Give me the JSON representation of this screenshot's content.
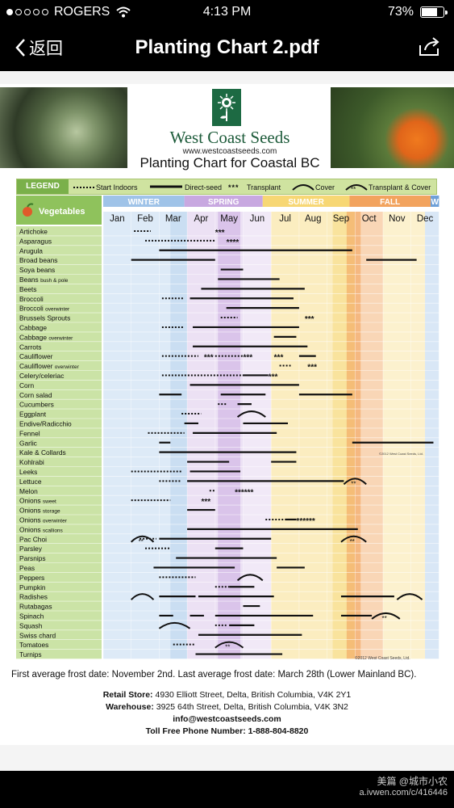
{
  "status_bar": {
    "carrier": "ROGERS",
    "time": "4:13 PM",
    "battery": "73%",
    "battery_level": 0.73
  },
  "nav": {
    "back_label": "返回",
    "title": "Planting Chart 2.pdf"
  },
  "document": {
    "brand": "West Coast Seeds",
    "website": "www.westcoastseeds.com",
    "chart_title": "Planting Chart for Coastal BC",
    "legend": {
      "label": "LEGEND",
      "start_indoors": "Start Indoors",
      "direct_seed": "Direct-seed",
      "transplant": "Transplant",
      "cover": "Cover",
      "transplant_cover": "Transplant & Cover"
    },
    "seasons": [
      "WINTER",
      "SPRING",
      "SUMMER",
      "FALL",
      "W"
    ],
    "months": [
      "Jan",
      "Feb",
      "Mar",
      "Apr",
      "May",
      "Jun",
      "Jul",
      "Aug",
      "Sep",
      "Oct",
      "Nov",
      "Dec"
    ],
    "vegetables_header": "Vegetables",
    "crops": [
      "Artichoke",
      "Asparagus",
      "Arugula",
      "Broad beans",
      "Soya beans",
      "Beans bush & pole",
      "Beets",
      "Broccoli",
      "Broccoli overwinter",
      "Brussels Sprouts",
      "Cabbage",
      "Cabbage overwinter",
      "Carrots",
      "Cauliflower",
      "Cauliflower overwinter",
      "Celery/celeriac",
      "Corn",
      "Corn salad",
      "Cucumbers",
      "Eggplant",
      "Endive/Radicchio",
      "Fennel",
      "Garlic",
      "Kale & Collards",
      "Kohlrabi",
      "Leeks",
      "Lettuce",
      "Melon",
      "Onions sweet",
      "Onions storage",
      "Onions overwinter",
      "Onions scallions",
      "Pac Choi",
      "Parsley",
      "Parsnips",
      "Peas",
      "Peppers",
      "Pumpkin",
      "Radishes",
      "Rutabagas",
      "Spinach",
      "Squash",
      "Swiss chard",
      "Tomatoes",
      "Turnips"
    ],
    "copyright": "©2012 West Coast Seeds, Ltd.",
    "frost_note": "First average frost date: November 2nd. Last average frost date: March 28th (Lower Mainland BC).",
    "retail_label": "Retail Store:",
    "retail_address": "4930 Elliott Street, Delta, British Columbia, V4K 2Y1",
    "warehouse_label": "Warehouse:",
    "warehouse_address": "3925 64th Street, Delta, British Columbia, V4K 3N2",
    "email": "info@westcoastseeds.com",
    "phone_label": "Toll Free Phone Number:",
    "phone": "1-888-804-8820"
  },
  "watermark": {
    "line1": "美篇 @城市小农",
    "line2": "a.ivwen.com/c/416446"
  },
  "colors": {
    "winter": "#9fc3e8",
    "spring": "#c8a8e0",
    "summer": "#f7d774",
    "fall": "#f2a35e",
    "veg_green": "#8fc25c",
    "logo_green": "#1d6a43"
  },
  "bars": [
    {
      "row": 0,
      "segs": [
        [
          "d",
          1.1,
          1.7
        ],
        [
          "t",
          4.0,
          4.4
        ]
      ]
    },
    {
      "row": 1,
      "segs": [
        [
          "d",
          1.5,
          4.0
        ],
        [
          "t",
          4.4,
          5.0
        ]
      ]
    },
    {
      "row": 2,
      "segs": [
        [
          "s",
          2.0,
          8.9
        ]
      ]
    },
    {
      "row": 3,
      "segs": [
        [
          "s",
          1.0,
          4.0
        ],
        [
          "s",
          9.4,
          11.2
        ]
      ]
    },
    {
      "row": 4,
      "segs": [
        [
          "s",
          4.2,
          5.0
        ]
      ]
    },
    {
      "row": 5,
      "segs": [
        [
          "s",
          4.1,
          6.3
        ]
      ]
    },
    {
      "row": 6,
      "segs": [
        [
          "s",
          3.5,
          7.2
        ]
      ]
    },
    {
      "row": 7,
      "segs": [
        [
          "d",
          2.1,
          2.9
        ],
        [
          "s",
          3.1,
          6.8
        ]
      ]
    },
    {
      "row": 8,
      "segs": [
        [
          "s",
          4.4,
          7.0
        ]
      ]
    },
    {
      "row": 9,
      "segs": [
        [
          "d",
          4.2,
          4.8
        ],
        [
          "t",
          7.2,
          7.6
        ]
      ]
    },
    {
      "row": 10,
      "segs": [
        [
          "d",
          2.1,
          2.9
        ],
        [
          "s",
          3.2,
          7.0
        ]
      ]
    },
    {
      "row": 11,
      "segs": [
        [
          "s",
          6.1,
          6.9
        ]
      ]
    },
    {
      "row": 12,
      "segs": [
        [
          "s",
          3.2,
          7.3
        ]
      ]
    },
    {
      "row": 13,
      "segs": [
        [
          "d",
          2.1,
          3.4
        ],
        [
          "t",
          3.6,
          4.0
        ],
        [
          "d",
          4.0,
          5.0
        ],
        [
          "t",
          5.0,
          5.4
        ],
        [
          "t",
          6.1,
          6.5
        ],
        [
          "s",
          7.0,
          7.6
        ]
      ]
    },
    {
      "row": 14,
      "segs": [
        [
          "d",
          6.3,
          6.7
        ],
        [
          "t",
          7.3,
          7.7
        ]
      ]
    },
    {
      "row": 15,
      "segs": [
        [
          "d",
          2.1,
          5.0
        ],
        [
          "s",
          5.0,
          5.9
        ],
        [
          "t",
          5.9,
          6.3
        ]
      ]
    },
    {
      "row": 16,
      "segs": [
        [
          "s",
          3.1,
          7.0
        ]
      ]
    },
    {
      "row": 17,
      "segs": [
        [
          "s",
          2.0,
          2.8
        ],
        [
          "s",
          4.2,
          5.8
        ],
        [
          "s",
          7.0,
          8.9
        ]
      ]
    },
    {
      "row": 18,
      "segs": [
        [
          "d",
          4.1,
          4.4
        ],
        [
          "s",
          4.8,
          5.3
        ]
      ]
    },
    {
      "row": 19,
      "segs": [
        [
          "d",
          2.8,
          3.5
        ],
        [
          "c",
          4.8,
          5.8
        ]
      ]
    },
    {
      "row": 20,
      "segs": [
        [
          "s",
          2.9,
          3.4
        ],
        [
          "s",
          5.0,
          6.6
        ]
      ]
    },
    {
      "row": 21,
      "segs": [
        [
          "d",
          1.6,
          2.9
        ],
        [
          "s",
          3.2,
          6.2
        ]
      ]
    },
    {
      "row": 22,
      "segs": [
        [
          "s",
          2.0,
          2.4
        ],
        [
          "s",
          8.9,
          11.8
        ]
      ]
    },
    {
      "row": 23,
      "segs": [
        [
          "s",
          2.0,
          6.9
        ]
      ]
    },
    {
      "row": 24,
      "segs": [
        [
          "s",
          3.0,
          4.5
        ],
        [
          "s",
          6.0,
          6.9
        ]
      ]
    },
    {
      "row": 25,
      "segs": [
        [
          "d",
          1.0,
          2.8
        ],
        [
          "s",
          3.1,
          4.9
        ]
      ]
    },
    {
      "row": 26,
      "segs": [
        [
          "d",
          2.0,
          2.8
        ],
        [
          "s",
          3.0,
          8.6
        ],
        [
          "tc",
          8.6,
          9.4
        ]
      ]
    },
    {
      "row": 27,
      "segs": [
        [
          "d",
          3.8,
          4.0
        ],
        [
          "t",
          4.7,
          5.6
        ]
      ]
    },
    {
      "row": 28,
      "segs": [
        [
          "d",
          1.0,
          2.4
        ],
        [
          "t",
          3.5,
          3.9
        ]
      ]
    },
    {
      "row": 29,
      "segs": [
        [
          "s",
          3.0,
          4.0
        ]
      ]
    },
    {
      "row": 30,
      "segs": [
        [
          "d",
          5.8,
          6.5
        ],
        [
          "s",
          6.5,
          6.9
        ],
        [
          "t",
          6.9,
          7.8
        ]
      ]
    },
    {
      "row": 31,
      "segs": [
        [
          "s",
          3.0,
          9.1
        ]
      ]
    },
    {
      "row": 32,
      "segs": [
        [
          "tc",
          1.0,
          1.8
        ],
        [
          "d",
          1.3,
          1.9
        ],
        [
          "s",
          2.0,
          6.0
        ],
        [
          "tc",
          8.5,
          9.4
        ]
      ]
    },
    {
      "row": 33,
      "segs": [
        [
          "d",
          1.5,
          2.4
        ],
        [
          "s",
          4.0,
          5.0
        ]
      ]
    },
    {
      "row": 34,
      "segs": [
        [
          "s",
          2.6,
          6.2
        ]
      ]
    },
    {
      "row": 35,
      "segs": [
        [
          "s",
          1.8,
          4.7
        ],
        [
          "s",
          6.2,
          7.2
        ]
      ]
    },
    {
      "row": 36,
      "segs": [
        [
          "d",
          2.0,
          3.3
        ],
        [
          "c",
          4.8,
          5.7
        ]
      ]
    },
    {
      "row": 37,
      "segs": [
        [
          "d",
          4.0,
          4.5
        ],
        [
          "s",
          4.5,
          5.4
        ]
      ]
    },
    {
      "row": 38,
      "segs": [
        [
          "c",
          1.0,
          1.8
        ],
        [
          "s",
          2.0,
          3.3
        ],
        [
          "s",
          3.4,
          6.1
        ],
        [
          "s",
          8.5,
          10.4
        ],
        [
          "c",
          10.5,
          11.4
        ]
      ]
    },
    {
      "row": 39,
      "segs": [
        [
          "s",
          5.0,
          5.6
        ]
      ]
    },
    {
      "row": 40,
      "segs": [
        [
          "s",
          2.0,
          2.5
        ],
        [
          "s",
          3.1,
          3.6
        ],
        [
          "s",
          4.0,
          7.5
        ],
        [
          "s",
          8.5,
          9.6
        ],
        [
          "tc",
          9.6,
          10.6
        ]
      ]
    },
    {
      "row": 41,
      "segs": [
        [
          "c",
          2.0,
          3.1
        ],
        [
          "d",
          4.0,
          4.4
        ],
        [
          "s",
          4.5,
          5.4
        ]
      ]
    },
    {
      "row": 42,
      "segs": [
        [
          "s",
          3.4,
          7.1
        ]
      ]
    },
    {
      "row": 43,
      "segs": [
        [
          "d",
          2.5,
          3.3
        ],
        [
          "tc",
          4.0,
          5.0
        ]
      ]
    },
    {
      "row": 44,
      "segs": [
        [
          "s",
          3.3,
          6.4
        ]
      ]
    }
  ]
}
